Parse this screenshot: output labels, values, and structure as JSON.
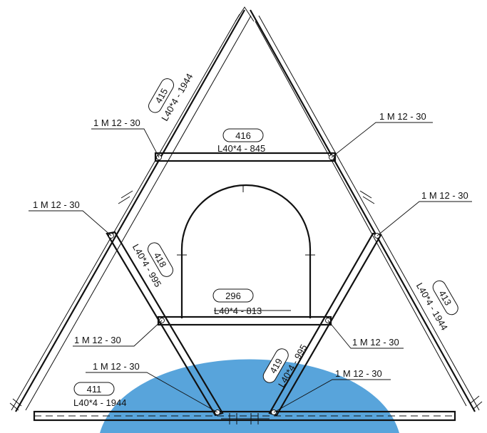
{
  "bolt_spec": "1 M 12 - 30",
  "members": {
    "m415": {
      "mark": "415",
      "profile": "L40*4  - 1944"
    },
    "m416": {
      "mark": "416",
      "profile": "L40*4  - 845"
    },
    "m418": {
      "mark": "418",
      "profile": "L40*4  - 995"
    },
    "m296": {
      "mark": "296",
      "profile": "L40*4  - 813"
    },
    "m413": {
      "mark": "413",
      "profile": "L40*4  - 1944"
    },
    "m419": {
      "mark": "419",
      "profile": "L40*4  - 995"
    },
    "m411": {
      "mark": "411",
      "profile": "L40*4  - 1944"
    }
  },
  "colors": {
    "line": "#111111",
    "watermark": "#4f9fd9"
  }
}
